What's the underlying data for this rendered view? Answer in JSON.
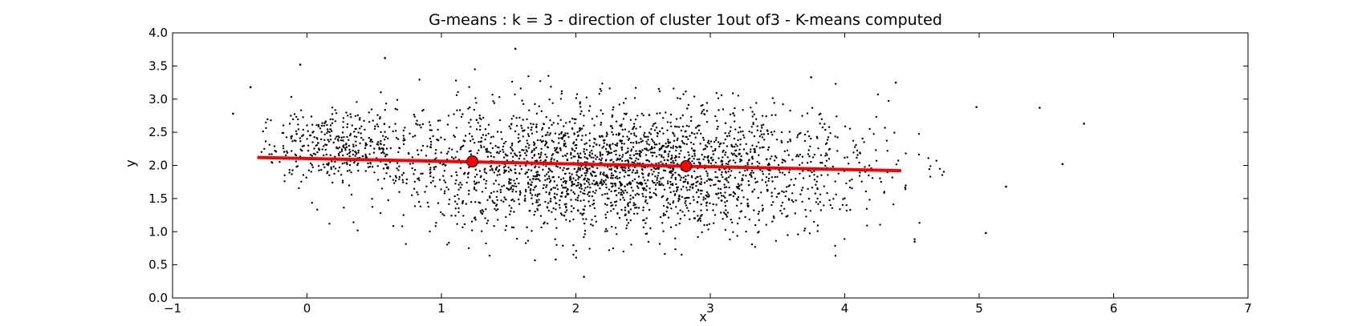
{
  "chart_data": {
    "type": "scatter",
    "title": "G-means : k = 3 - direction of cluster 1out of3 - K-means computed",
    "xlabel": "x",
    "ylabel": "y",
    "xlim": [
      -1,
      7
    ],
    "ylim": [
      0.0,
      4.0
    ],
    "x_ticks": [
      "−1",
      "0",
      "1",
      "2",
      "3",
      "4",
      "5",
      "6",
      "7"
    ],
    "y_ticks": [
      "0.0",
      "0.5",
      "1.0",
      "1.5",
      "2.0",
      "2.5",
      "3.0",
      "3.5",
      "4.0"
    ],
    "grid": false,
    "legend": "none",
    "scatter_color": "#000000",
    "line_color": "#ff0000",
    "direction_line": {
      "x": [
        -0.37,
        4.42
      ],
      "y": [
        2.12,
        1.92
      ]
    },
    "centers": {
      "x": [
        1.23,
        2.82
      ],
      "y": [
        2.06,
        1.99
      ]
    },
    "outlier_points": {
      "x": [
        -0.55,
        -0.42,
        -0.05,
        0.58,
        1.55,
        3.75,
        4.38,
        5.45,
        5.78,
        5.62,
        5.05,
        5.2,
        4.98,
        2.06,
        1.85,
        4.52
      ],
      "y": [
        2.78,
        3.18,
        3.52,
        3.62,
        3.76,
        3.33,
        3.25,
        2.87,
        2.63,
        2.02,
        0.98,
        1.68,
        2.88,
        0.32,
        0.58,
        0.85
      ]
    }
  }
}
